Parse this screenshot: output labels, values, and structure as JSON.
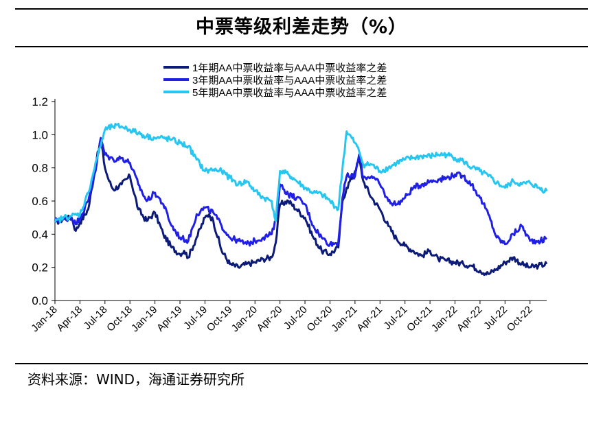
{
  "title": "中票等级利差走势（%）",
  "source": "资料来源：WIND，海通证券研究所",
  "chart_data": {
    "type": "line",
    "title": "中票等级利差走势（%）",
    "xlabel": "",
    "ylabel": "",
    "ylim": [
      0,
      1.2
    ],
    "yticks": [
      "0.0",
      "0.2",
      "0.4",
      "0.6",
      "0.8",
      "1.0",
      "1.2"
    ],
    "xticks": [
      "Jan-18",
      "Apr-18",
      "Jul-18",
      "Oct-18",
      "Jan-19",
      "Apr-19",
      "Jul-19",
      "Oct-19",
      "Jan-20",
      "Apr-20",
      "Jul-20",
      "Oct-20",
      "Jan-21",
      "Apr-21",
      "Jul-21",
      "Oct-21",
      "Jan-22",
      "Apr-22",
      "Jul-22",
      "Oct-22"
    ],
    "x_unit": "months since Jan-18",
    "xlim": [
      0,
      59
    ],
    "legend_position": "top",
    "series": [
      {
        "name": "1年期AA中票收益率与AAA中票收益率之差",
        "color": "#0c1a78",
        "x": [
          0,
          1,
          2,
          2.5,
          3,
          4,
          5,
          5.5,
          6,
          6.5,
          7,
          8,
          9,
          10,
          11,
          12,
          13,
          14,
          15,
          15.5,
          16,
          17,
          18,
          18.5,
          19,
          20,
          21,
          22,
          23,
          24,
          25,
          26,
          26.5,
          27,
          28,
          29,
          30,
          31,
          32,
          33,
          34,
          34.5,
          35,
          36,
          36.5,
          37,
          38,
          39,
          40,
          41,
          42,
          43,
          44,
          45,
          46,
          47,
          48,
          49,
          50,
          51,
          52,
          53,
          54,
          55,
          56,
          57,
          58,
          59
        ],
        "values": [
          0.47,
          0.49,
          0.5,
          0.42,
          0.47,
          0.55,
          0.85,
          0.97,
          0.8,
          0.72,
          0.67,
          0.7,
          0.75,
          0.55,
          0.48,
          0.53,
          0.4,
          0.32,
          0.28,
          0.3,
          0.26,
          0.38,
          0.5,
          0.52,
          0.48,
          0.3,
          0.22,
          0.2,
          0.22,
          0.23,
          0.25,
          0.26,
          0.35,
          0.58,
          0.6,
          0.55,
          0.5,
          0.38,
          0.3,
          0.28,
          0.32,
          0.6,
          0.68,
          0.78,
          0.85,
          0.72,
          0.62,
          0.55,
          0.45,
          0.37,
          0.33,
          0.3,
          0.27,
          0.3,
          0.25,
          0.24,
          0.23,
          0.22,
          0.21,
          0.18,
          0.16,
          0.19,
          0.23,
          0.26,
          0.22,
          0.2,
          0.21,
          0.22
        ]
      },
      {
        "name": "3年期AA中票收益率与AAA中票收益率之差",
        "color": "#1f1fe6",
        "x": [
          0,
          1,
          2,
          2.5,
          3,
          4,
          5,
          5.5,
          6,
          7,
          8,
          9,
          10,
          11,
          12,
          13,
          14,
          15,
          16,
          17,
          18,
          19,
          20,
          21,
          22,
          23,
          24,
          25,
          26,
          26.5,
          27,
          28,
          29,
          30,
          31,
          32,
          33,
          34,
          34.5,
          35,
          36,
          36.5,
          37,
          38,
          39,
          40,
          41,
          42,
          43,
          44,
          45,
          46,
          47,
          48,
          49,
          50,
          51,
          52,
          53,
          54,
          55,
          56,
          57,
          58,
          59
        ],
        "values": [
          0.48,
          0.49,
          0.5,
          0.46,
          0.5,
          0.6,
          0.82,
          0.98,
          0.88,
          0.85,
          0.86,
          0.83,
          0.7,
          0.6,
          0.65,
          0.58,
          0.45,
          0.38,
          0.36,
          0.52,
          0.56,
          0.53,
          0.45,
          0.38,
          0.36,
          0.34,
          0.36,
          0.38,
          0.4,
          0.48,
          0.7,
          0.64,
          0.62,
          0.58,
          0.45,
          0.38,
          0.34,
          0.35,
          0.62,
          0.75,
          0.75,
          0.88,
          0.74,
          0.75,
          0.7,
          0.6,
          0.58,
          0.62,
          0.68,
          0.7,
          0.72,
          0.73,
          0.74,
          0.76,
          0.75,
          0.7,
          0.62,
          0.52,
          0.38,
          0.34,
          0.4,
          0.45,
          0.36,
          0.36,
          0.37
        ]
      },
      {
        "name": "5年期AA中票收益率与AAA中票收益率之差",
        "color": "#27c6f0",
        "x": [
          0,
          1,
          2,
          3,
          4,
          5,
          6,
          7,
          8,
          9,
          10,
          11,
          12,
          13,
          14,
          15,
          16,
          17,
          18,
          19,
          20,
          21,
          22,
          23,
          24,
          25,
          26,
          26.5,
          27,
          28,
          29,
          30,
          31,
          32,
          33,
          34,
          34.5,
          35,
          36,
          36.5,
          37,
          38,
          39,
          40,
          41,
          42,
          43,
          44,
          45,
          46,
          47,
          48,
          49,
          50,
          51,
          52,
          53,
          54,
          55,
          56,
          57,
          58,
          59
        ],
        "values": [
          0.47,
          0.5,
          0.51,
          0.52,
          0.65,
          0.85,
          1.03,
          1.05,
          1.05,
          1.03,
          1.01,
          0.99,
          0.98,
          0.98,
          0.97,
          0.95,
          0.93,
          0.85,
          0.78,
          0.79,
          0.78,
          0.74,
          0.7,
          0.72,
          0.66,
          0.62,
          0.6,
          0.48,
          0.78,
          0.76,
          0.72,
          0.68,
          0.65,
          0.64,
          0.6,
          0.55,
          0.8,
          1.02,
          0.95,
          0.9,
          0.82,
          0.82,
          0.78,
          0.8,
          0.83,
          0.85,
          0.86,
          0.87,
          0.87,
          0.88,
          0.88,
          0.86,
          0.84,
          0.8,
          0.78,
          0.75,
          0.71,
          0.68,
          0.72,
          0.7,
          0.71,
          0.68,
          0.66
        ]
      }
    ]
  }
}
